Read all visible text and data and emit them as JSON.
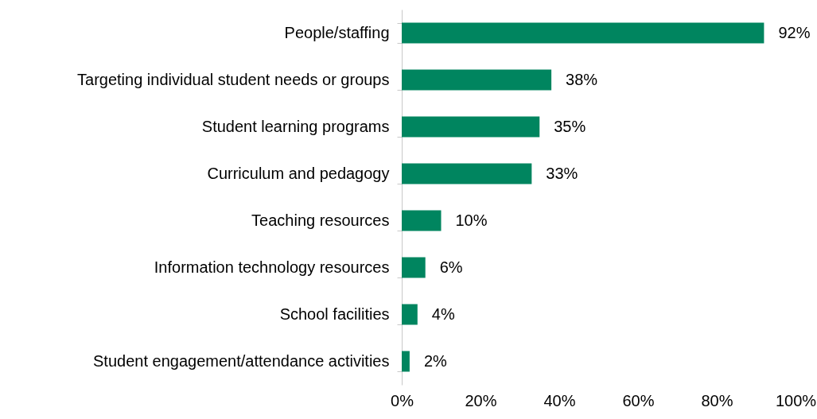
{
  "chart_data": {
    "type": "bar",
    "orientation": "horizontal",
    "categories": [
      "People/staffing",
      "Targeting individual student needs or groups",
      "Student learning programs",
      "Curriculum and pedagogy",
      "Teaching resources",
      "Information technology resources",
      "School facilities",
      "Student engagement/attendance activities"
    ],
    "values": [
      92,
      38,
      35,
      33,
      10,
      6,
      4,
      2
    ],
    "value_labels": [
      "92%",
      "38%",
      "35%",
      "33%",
      "10%",
      "6%",
      "4%",
      "2%"
    ],
    "color": "#00855f",
    "xlim": [
      0,
      100
    ],
    "xticks": [
      {
        "value": 0,
        "label": "0%"
      },
      {
        "value": 20,
        "label": "20%"
      },
      {
        "value": 40,
        "label": "40%"
      },
      {
        "value": 60,
        "label": "60%"
      },
      {
        "value": 80,
        "label": "80%"
      },
      {
        "value": 100,
        "label": "100%"
      }
    ],
    "grid": false
  }
}
